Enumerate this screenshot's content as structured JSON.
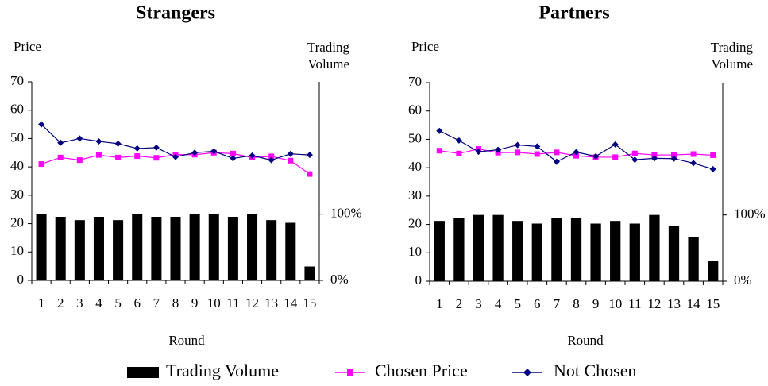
{
  "chart_data": [
    {
      "type": "combo",
      "title": "Strangers",
      "ylabel": "Price",
      "y2label": "Trading Volume",
      "xlabel": "Round",
      "categories": [
        "1",
        "2",
        "3",
        "4",
        "5",
        "6",
        "7",
        "8",
        "9",
        "10",
        "11",
        "12",
        "13",
        "14",
        "15"
      ],
      "ylim": [
        0,
        70
      ],
      "yticks": [
        0,
        10,
        20,
        30,
        40,
        50,
        60,
        70
      ],
      "y2lim": [
        0,
        300
      ],
      "y2ticks": [
        {
          "value": 0,
          "label": "0%"
        },
        {
          "value": 100,
          "label": "100%"
        }
      ],
      "series": [
        {
          "name": "Trading Volume",
          "kind": "bar",
          "axis": "y2",
          "color": "#000000",
          "values": [
            100,
            96,
            91,
            96,
            91,
            100,
            96,
            96,
            100,
            100,
            96,
            100,
            91,
            87,
            21
          ]
        },
        {
          "name": "Chosen Price",
          "kind": "line",
          "marker": "square",
          "color": "#ff00ff",
          "values": [
            41,
            43.3,
            42.4,
            44.2,
            43.3,
            43.8,
            43.2,
            44.3,
            44.3,
            45,
            44.7,
            43.3,
            43.7,
            42.2,
            37.5
          ]
        },
        {
          "name": "Not Chosen",
          "kind": "line",
          "marker": "diamond",
          "color": "#000080",
          "values": [
            55,
            48.5,
            50,
            49,
            48.2,
            46.5,
            46.8,
            43.5,
            45,
            45.5,
            43,
            44,
            42.4,
            44.6,
            44.2
          ]
        }
      ]
    },
    {
      "type": "combo",
      "title": "Partners",
      "ylabel": "Price",
      "y2label": "Trading Volume",
      "xlabel": "Round",
      "categories": [
        "1",
        "2",
        "3",
        "4",
        "5",
        "6",
        "7",
        "8",
        "9",
        "10",
        "11",
        "12",
        "13",
        "14",
        "15"
      ],
      "ylim": [
        0,
        70
      ],
      "yticks": [
        0,
        10,
        20,
        30,
        40,
        50,
        60,
        70
      ],
      "y2lim": [
        0,
        300
      ],
      "y2ticks": [
        {
          "value": 0,
          "label": "0%"
        },
        {
          "value": 100,
          "label": "100%"
        }
      ],
      "series": [
        {
          "name": "Trading Volume",
          "kind": "bar",
          "axis": "y2",
          "color": "#000000",
          "values": [
            91,
            96,
            100,
            100,
            91,
            87,
            96,
            96,
            87,
            91,
            87,
            100,
            83,
            66,
            30
          ]
        },
        {
          "name": "Chosen Price",
          "kind": "line",
          "marker": "square",
          "color": "#ff00ff",
          "values": [
            46,
            45,
            46.6,
            45.3,
            45.4,
            44.8,
            45.4,
            44.2,
            43.7,
            43.7,
            45,
            44.5,
            44.5,
            44.8,
            44.4
          ]
        },
        {
          "name": "Not Chosen",
          "kind": "line",
          "marker": "diamond",
          "color": "#000080",
          "values": [
            53,
            49.6,
            45.6,
            46.3,
            48,
            47.5,
            42.1,
            45.5,
            44,
            48.2,
            42.8,
            43.3,
            43.2,
            41.6,
            39.5
          ]
        }
      ]
    }
  ]
}
